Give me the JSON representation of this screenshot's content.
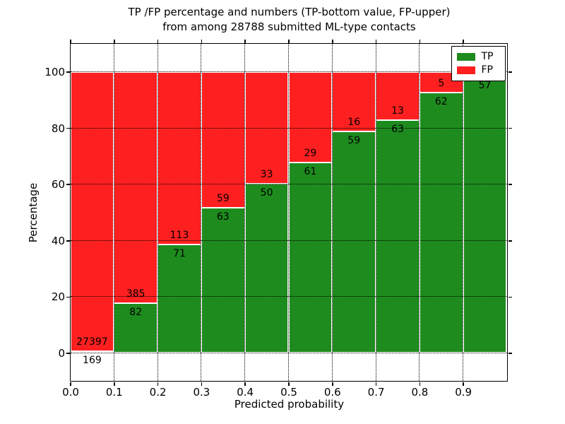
{
  "title": {
    "line1": "TP /FP percentage and numbers (TP-bottom value, FP-upper)",
    "line2": "from among 28788 submitted ML-type contacts"
  },
  "axes": {
    "xlabel": "Predicted probability",
    "ylabel": "Percentage",
    "yticks": [
      0,
      20,
      40,
      60,
      80,
      100
    ],
    "xticks": [
      "0.0",
      "0.1",
      "0.2",
      "0.3",
      "0.4",
      "0.5",
      "0.6",
      "0.7",
      "0.8",
      "0.9"
    ]
  },
  "legend": {
    "entries": [
      {
        "label": "TP",
        "color": "#1e8b1e"
      },
      {
        "label": "FP",
        "color": "#fe2020"
      }
    ]
  },
  "colors": {
    "tp": "#1e8b1e",
    "fp": "#fe2020",
    "grid": "#000000",
    "background": "#ffffff",
    "text": "#000000"
  },
  "chart_data": {
    "type": "bar",
    "stacked": true,
    "grid": true,
    "legend_position": "upper right",
    "title": "TP /FP percentage and numbers (TP-bottom value, FP-upper) from among 28788 submitted ML-type contacts",
    "xlabel": "Predicted probability",
    "ylabel": "Percentage",
    "xlim": [
      0.0,
      1.0
    ],
    "ylim": [
      -10,
      110
    ],
    "total_contacts": 28788,
    "bin_width": 0.1,
    "categories": [
      "0.0-0.1",
      "0.1-0.2",
      "0.2-0.3",
      "0.3-0.4",
      "0.4-0.5",
      "0.5-0.6",
      "0.6-0.7",
      "0.7-0.8",
      "0.8-0.9",
      "0.9-1.0"
    ],
    "series": [
      {
        "name": "TP",
        "color": "#1e8b1e",
        "counts": [
          169,
          82,
          71,
          63,
          50,
          61,
          59,
          63,
          62,
          57
        ],
        "pct": [
          0.6,
          17.6,
          38.6,
          51.6,
          60.2,
          67.8,
          78.7,
          82.9,
          92.5,
          98.3
        ]
      },
      {
        "name": "FP",
        "color": "#fe2020",
        "counts": [
          27397,
          385,
          113,
          59,
          33,
          29,
          16,
          13,
          5,
          null
        ],
        "pct": [
          99.4,
          82.4,
          61.4,
          48.4,
          39.8,
          32.2,
          21.3,
          17.1,
          7.5,
          1.7
        ]
      }
    ]
  }
}
